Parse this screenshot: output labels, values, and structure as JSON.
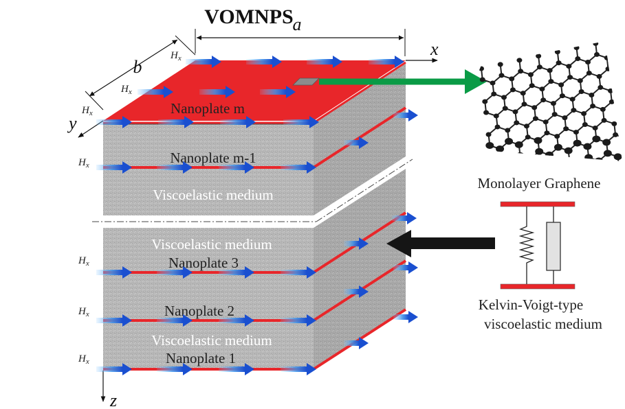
{
  "title": "VOMNPS",
  "dimensions": {
    "a": "a",
    "b": "b"
  },
  "axes": {
    "x": "x",
    "y": "y",
    "z": "z"
  },
  "field_label": "H",
  "field_subscript": "x",
  "upper_block": {
    "top_plate": "Nanoplate m",
    "second_plate": "Nanoplate m-1",
    "medium": "Viscoelastic medium"
  },
  "lower_block": {
    "medium_top": "Viscoelastic medium",
    "plate_3": "Nanoplate 3",
    "plate_2": "Nanoplate 2",
    "medium_bottom": "Viscoelastic medium",
    "plate_1": "Nanoplate 1"
  },
  "graphene_label": "Monolayer Graphene",
  "kelvin_label_line1": "Kelvin-Voigt-type",
  "kelvin_label_line2": "viscoelastic medium",
  "colors": {
    "plate_red": "#e8262a",
    "medium_gray": "#b4b4b4",
    "field_arrow": "#1f5fd6",
    "green_arrow": "#0a9b46",
    "black_arrow": "#151515"
  }
}
